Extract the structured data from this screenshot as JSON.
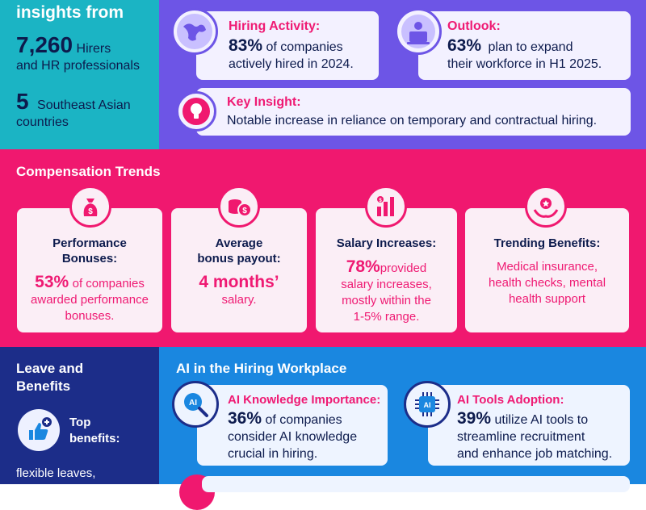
{
  "overview": {
    "title": "insights from",
    "hirers_number": "7,260",
    "hirers_label_line1": "Hirers",
    "hirers_label_line2": "and HR professionals",
    "countries_number": "5",
    "countries_label_line1": "Southeast Asian",
    "countries_label_line2": "countries"
  },
  "hiring": {
    "title": "Hiring Activity:",
    "percent": "83%",
    "text_line1": "of companies",
    "text_line2": "actively hired in 2024."
  },
  "outlook": {
    "title": "Outlook:",
    "percent": "63%",
    "text_line1": "plan to expand",
    "text_line2": "their workforce in H1 2025."
  },
  "key_insight": {
    "title": "Key Insight:",
    "text": "Notable increase in reliance on temporary and contractual hiring."
  },
  "compensation": {
    "title": "Compensation  Trends",
    "cards": [
      {
        "head_line1": "Performance",
        "head_line2": "Bonuses:",
        "big": "53%",
        "line1": "of companies",
        "line2": "awarded performance",
        "line3": "bonuses."
      },
      {
        "head_line1": "Average",
        "head_line2": "bonus payout:",
        "big": "4 months’",
        "line1": "salary."
      },
      {
        "head_line1": "Salary Increases:",
        "big": "78%",
        "inline": "provided",
        "line1": "salary increases,",
        "line2": "mostly within the",
        "line3": "1-5% range."
      },
      {
        "head_line1": "Trending Benefits:",
        "line1": "Medical insurance,",
        "line2": "health checks, mental",
        "line3": "health support"
      }
    ]
  },
  "leave": {
    "title_line1": "Leave and",
    "title_line2": "Benefits",
    "top_line1": "Top",
    "top_line2": "benefits:",
    "list_line1": "flexible leaves,"
  },
  "ai": {
    "title": "AI in the Hiring Workplace",
    "knowledge_title": "AI Knowledge Importance:",
    "knowledge_percent": "36%",
    "knowledge_line1": "of companies",
    "knowledge_line2": "consider AI knowledge",
    "knowledge_line3": "crucial in hiring.",
    "tools_title": "AI Tools Adoption:",
    "tools_percent": "39%",
    "tools_line1": "utilize AI tools to",
    "tools_line2": "streamline recruitment",
    "tools_line3": "and enhance job matching.",
    "ai_badge": "AI"
  },
  "colors": {
    "teal": "#1bb4c4",
    "purple": "#6d55e6",
    "pink": "#f0186f",
    "navy": "#1c2d89",
    "blue": "#1a87e0",
    "dark_text": "#0d1b4d"
  },
  "icons": [
    "globe-icon",
    "laptop-person-icon",
    "lightbulb-icon",
    "money-bag-icon",
    "coins-icon",
    "bar-chart-icon",
    "hands-star-icon",
    "thumbs-up-icon",
    "ai-search-icon",
    "ai-chip-icon"
  ]
}
